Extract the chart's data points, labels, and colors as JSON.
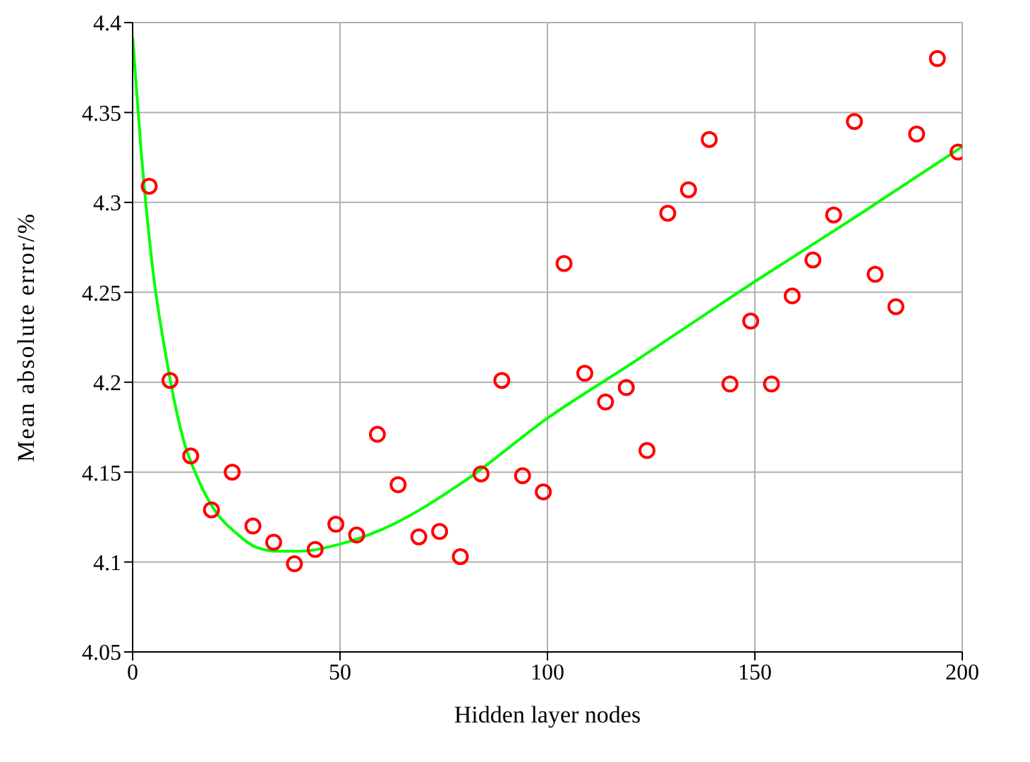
{
  "chart_data": {
    "type": "scatter",
    "xlabel": "Hidden layer nodes",
    "ylabel": "Mean absolute error/%",
    "xlim": [
      0,
      200
    ],
    "xticks": [
      0,
      50,
      100,
      150,
      200
    ],
    "ylim": [
      4.05,
      4.4
    ],
    "yticks": [
      4.05,
      4.1,
      4.15,
      4.2,
      4.25,
      4.3,
      4.35,
      4.4
    ],
    "grid": true,
    "legend": false,
    "marker": "circle",
    "series": [
      {
        "color": "#ff0000",
        "x": [
          4,
          9,
          14,
          19,
          24,
          29,
          34,
          39,
          44,
          49,
          54,
          59,
          64,
          69,
          74,
          79,
          84,
          89,
          94,
          99,
          104,
          109,
          114,
          119,
          124,
          129,
          134,
          139,
          144,
          149,
          154,
          159,
          164,
          169,
          174,
          179,
          184,
          189,
          194,
          199
        ],
        "values": [
          4.309,
          4.201,
          4.159,
          4.129,
          4.15,
          4.12,
          4.111,
          4.099,
          4.107,
          4.121,
          4.115,
          4.171,
          4.143,
          4.114,
          4.117,
          4.103,
          4.149,
          4.201,
          4.148,
          4.139,
          4.266,
          4.205,
          4.189,
          4.197,
          4.162,
          4.294,
          4.307,
          4.335,
          4.199,
          4.234,
          4.199,
          4.248,
          4.268,
          4.293,
          4.345,
          4.26,
          4.242,
          4.338,
          4.38,
          4.328
        ]
      },
      {
        "type": "line",
        "color": "#00ff00",
        "marker": "none",
        "line_style": "solid",
        "x": [
          0,
          2,
          5,
          8,
          12,
          16,
          20,
          25,
          30,
          35,
          40,
          50,
          60,
          80,
          100,
          120,
          150,
          175,
          200
        ],
        "values": [
          4.392,
          4.33,
          4.26,
          4.215,
          4.17,
          4.145,
          4.128,
          4.116,
          4.108,
          4.106,
          4.106,
          4.11,
          4.118,
          4.145,
          4.18,
          4.21,
          4.256,
          4.293,
          4.331
        ]
      }
    ]
  }
}
